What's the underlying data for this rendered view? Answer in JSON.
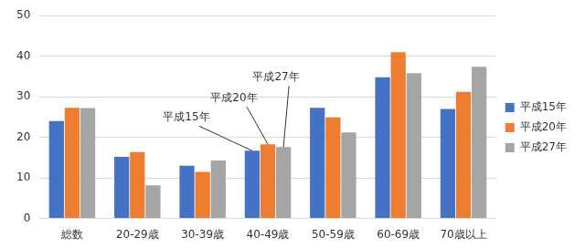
{
  "chart_data": {
    "type": "bar",
    "categories": [
      "総数",
      "20-29歳",
      "30-39歳",
      "40-49歳",
      "50-59歳",
      "60-69歳",
      "70歳以上"
    ],
    "series": [
      {
        "name": "平成15年",
        "color": "#4472c4",
        "values": [
          24.0,
          15.2,
          13.0,
          16.7,
          27.3,
          34.8,
          27.0
        ]
      },
      {
        "name": "平成20年",
        "color": "#ed7d31",
        "values": [
          27.3,
          16.4,
          11.5,
          18.3,
          24.9,
          41.0,
          31.2
        ]
      },
      {
        "name": "平成27年",
        "color": "#a5a5a5",
        "values": [
          27.2,
          8.2,
          14.3,
          17.6,
          21.2,
          35.8,
          37.4
        ]
      }
    ],
    "annotations": [
      {
        "text": "平成15年",
        "category": "40-49歳",
        "series": "平成15年"
      },
      {
        "text": "平成20年",
        "category": "40-49歳",
        "series": "平成20年"
      },
      {
        "text": "平成27年",
        "category": "40-49歳",
        "series": "平成27年"
      }
    ],
    "ylim": [
      0,
      50
    ],
    "yticks": [
      0,
      10,
      20,
      30,
      40,
      50
    ],
    "grid": true,
    "legend": "right"
  }
}
